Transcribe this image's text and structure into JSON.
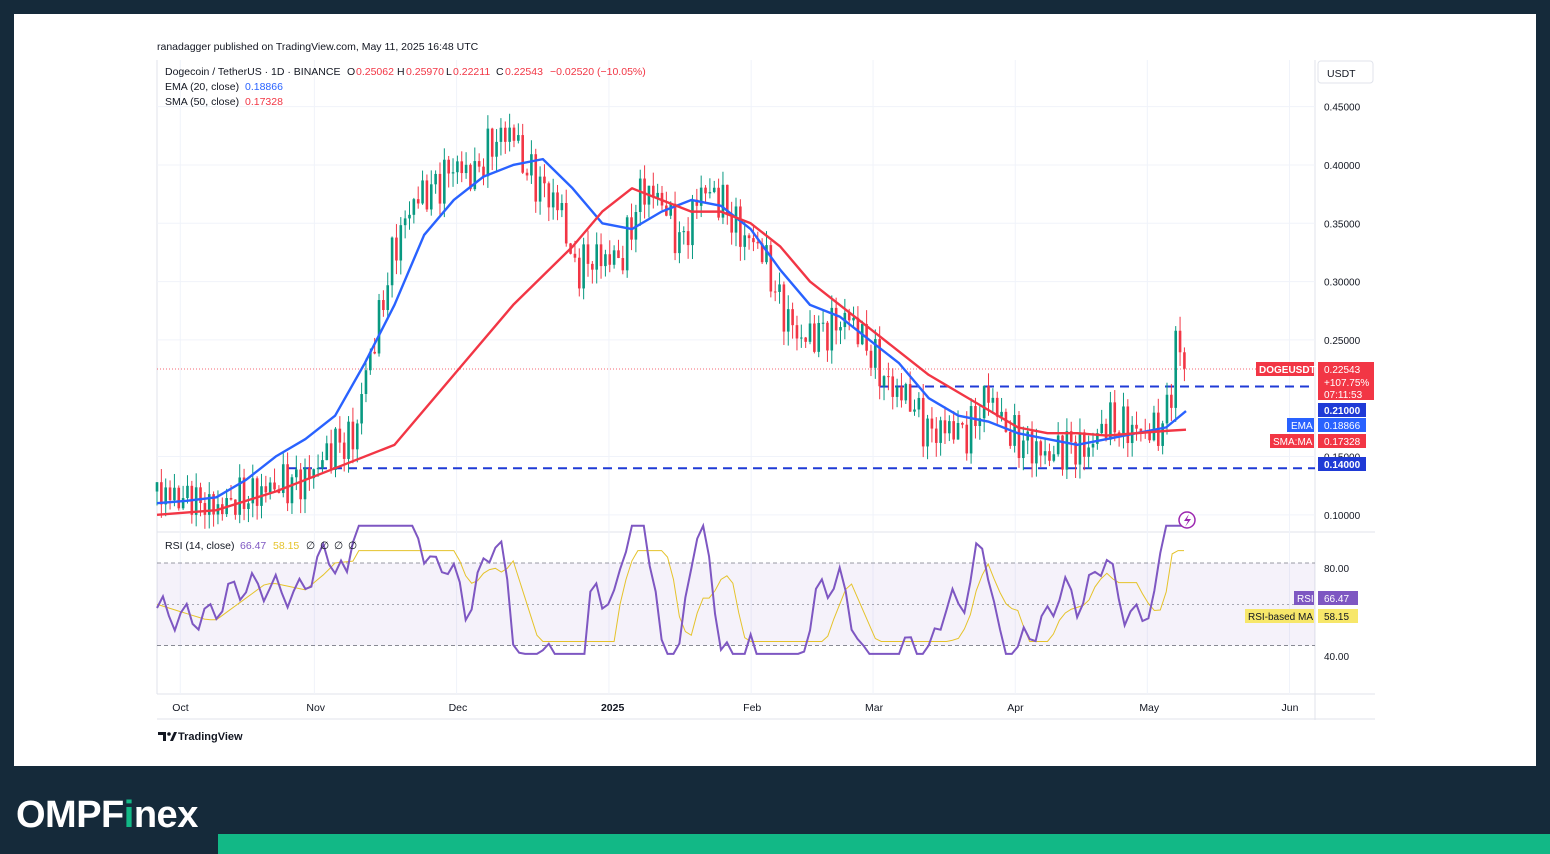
{
  "header": {
    "published": "ranadagger published on TradingView.com, May 11, 2025 16:48 UTC",
    "symbol": "Dogecoin / TetherUS · 1D · BINANCE",
    "ohlc": {
      "o_label": "O",
      "o": "0.25062",
      "h_label": "H",
      "h": "0.25970",
      "l_label": "L",
      "l": "0.22211",
      "c_label": "C",
      "c": "0.22543",
      "change": "−0.02520 (−10.05%)"
    },
    "ema_legend": {
      "label": "EMA (20, close)",
      "value": "0.18866"
    },
    "sma_legend": {
      "label": "SMA (50, close)",
      "value": "0.17328"
    },
    "currency": "USDT"
  },
  "price_labels": {
    "ticker": "DOGEUSDT",
    "price": "0.22543",
    "change": "+107.75%",
    "countdown": "07:11:53",
    "level_high": "0.21000",
    "ema_name": "EMA",
    "ema_value": "0.18866",
    "sma_name": "SMA:MA",
    "sma_value": "0.17328",
    "level_low": "0.14000"
  },
  "rsi": {
    "legend": "RSI (14, close)",
    "value": "66.47",
    "ma_value": "58.15",
    "empty_values": [
      "∅",
      "∅",
      "∅",
      "∅"
    ],
    "label": "RSI",
    "ma_label": "RSI-based MA",
    "ticks": [
      "80.00",
      "40.00"
    ]
  },
  "chart_data": {
    "type": "candlestick",
    "x_ticks": [
      "Oct",
      "Nov",
      "Dec",
      "2025",
      "Feb",
      "Mar",
      "Apr",
      "May",
      "Jun"
    ],
    "y_ticks": [
      "0.45000",
      "0.40000",
      "0.35000",
      "0.30000",
      "0.25000",
      "0.15000",
      "0.10000"
    ],
    "ylim": [
      0.087,
      0.49
    ],
    "horizontal_levels": [
      0.21,
      0.14
    ],
    "series": [
      {
        "name": "EMA (20, close)",
        "color": "#2962ff",
        "points": [
          [
            0,
            0.11
          ],
          [
            15,
            0.112
          ],
          [
            30,
            0.115
          ],
          [
            45,
            0.13
          ],
          [
            60,
            0.15
          ],
          [
            75,
            0.165
          ],
          [
            90,
            0.185
          ],
          [
            105,
            0.23
          ],
          [
            120,
            0.28
          ],
          [
            135,
            0.34
          ],
          [
            150,
            0.37
          ],
          [
            165,
            0.39
          ],
          [
            180,
            0.4
          ],
          [
            195,
            0.405
          ],
          [
            210,
            0.38
          ],
          [
            225,
            0.35
          ],
          [
            240,
            0.345
          ],
          [
            255,
            0.36
          ],
          [
            270,
            0.37
          ],
          [
            285,
            0.365
          ],
          [
            300,
            0.345
          ],
          [
            315,
            0.31
          ],
          [
            330,
            0.28
          ],
          [
            345,
            0.27
          ],
          [
            360,
            0.25
          ],
          [
            375,
            0.23
          ],
          [
            390,
            0.2
          ],
          [
            405,
            0.185
          ],
          [
            420,
            0.18
          ],
          [
            435,
            0.17
          ],
          [
            450,
            0.165
          ],
          [
            465,
            0.16
          ],
          [
            480,
            0.165
          ],
          [
            495,
            0.17
          ],
          [
            510,
            0.175
          ],
          [
            520,
            0.189
          ]
        ]
      },
      {
        "name": "SMA (50, close)",
        "color": "#f23645",
        "points": [
          [
            0,
            0.1
          ],
          [
            30,
            0.104
          ],
          [
            60,
            0.12
          ],
          [
            90,
            0.14
          ],
          [
            120,
            0.16
          ],
          [
            150,
            0.22
          ],
          [
            180,
            0.28
          ],
          [
            210,
            0.33
          ],
          [
            225,
            0.36
          ],
          [
            240,
            0.38
          ],
          [
            255,
            0.37
          ],
          [
            270,
            0.36
          ],
          [
            285,
            0.36
          ],
          [
            300,
            0.35
          ],
          [
            315,
            0.33
          ],
          [
            330,
            0.3
          ],
          [
            345,
            0.28
          ],
          [
            360,
            0.26
          ],
          [
            375,
            0.24
          ],
          [
            390,
            0.22
          ],
          [
            405,
            0.205
          ],
          [
            420,
            0.19
          ],
          [
            435,
            0.175
          ],
          [
            450,
            0.17
          ],
          [
            465,
            0.17
          ],
          [
            480,
            0.168
          ],
          [
            495,
            0.17
          ],
          [
            510,
            0.172
          ],
          [
            520,
            0.173
          ]
        ]
      }
    ],
    "rsi_series": {
      "name": "RSI (14, close)",
      "color": "#7e57c2",
      "range": [
        0,
        100
      ],
      "upper": 70,
      "middle": 50,
      "lower": 30
    }
  },
  "watermark": "TradingView",
  "brand": {
    "name_pre": "OMPF",
    "name_i": "i",
    "name_post": "nex",
    "accent": "#12b886",
    "background": "#152a3a"
  }
}
